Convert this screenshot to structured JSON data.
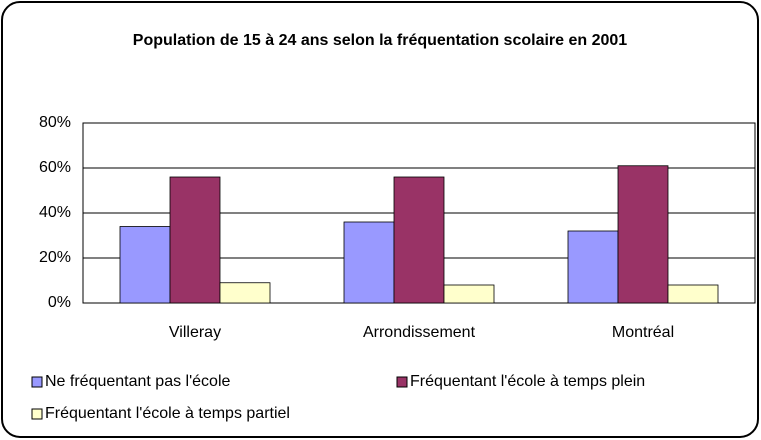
{
  "chart_data": {
    "type": "bar",
    "title": "Population de 15 à 24 ans selon la fréquentation scolaire en 2001",
    "categories": [
      "Villeray",
      "Arrondissement",
      "Montréal"
    ],
    "series": [
      {
        "name": "Ne fréquentant pas l'école",
        "color": "#9999ff",
        "values": [
          34,
          36,
          32
        ]
      },
      {
        "name": "Fréquentant l'école à temps plein",
        "color": "#993366",
        "values": [
          56,
          56,
          61
        ]
      },
      {
        "name": "Fréquentant l'école à temps partiel",
        "color": "#ffffcc",
        "values": [
          9,
          8,
          8
        ]
      }
    ],
    "ylim": [
      0,
      80
    ],
    "yticks": [
      {
        "value": 0,
        "label": "0%"
      },
      {
        "value": 20,
        "label": "20%"
      },
      {
        "value": 40,
        "label": "40%"
      },
      {
        "value": 60,
        "label": "60%"
      },
      {
        "value": 80,
        "label": "80%"
      }
    ],
    "grid": true,
    "legend": "bottom"
  }
}
